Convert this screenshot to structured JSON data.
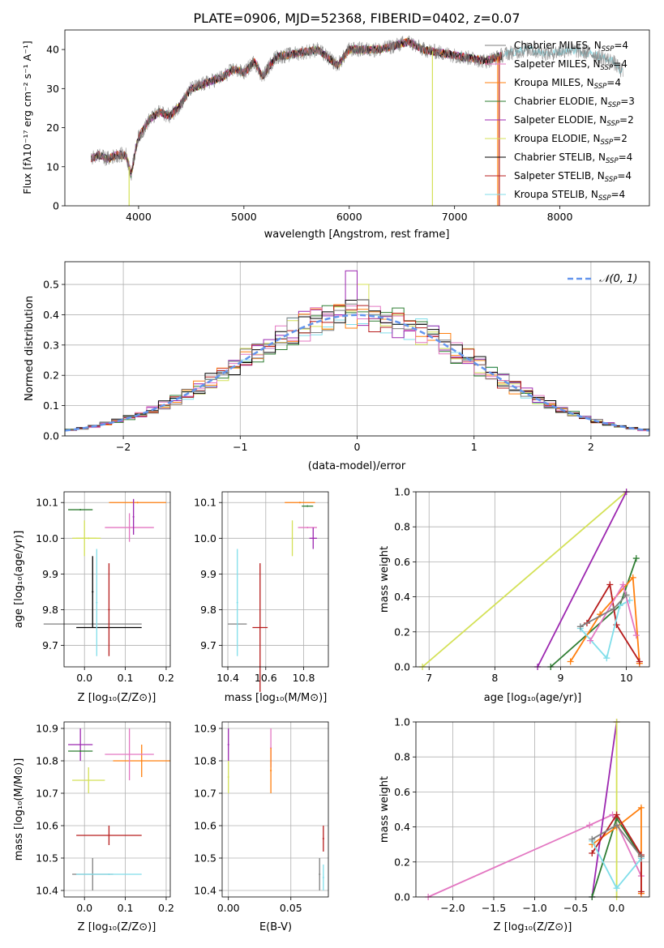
{
  "figure_title": "PLATE=0906, MJD=52368, FIBERID=0402, z=0.07",
  "legend": [
    {
      "label": "Chabrier MILES, N",
      "sub": "SSP",
      "tail": "=4",
      "color": "#7f7f7f"
    },
    {
      "label": "Salpeter MILES, N",
      "sub": "SSP",
      "tail": "=4",
      "color": "#e377c2"
    },
    {
      "label": "Kroupa MILES, N",
      "sub": "SSP",
      "tail": "=4",
      "color": "#ff7f0e"
    },
    {
      "label": "Chabrier ELODIE, N",
      "sub": "SSP",
      "tail": "=3",
      "color": "#2e7d32"
    },
    {
      "label": "Salpeter ELODIE, N",
      "sub": "SSP",
      "tail": "=2",
      "color": "#9c27b0"
    },
    {
      "label": "Kroupa ELODIE, N",
      "sub": "SSP",
      "tail": "=2",
      "color": "#d4e157"
    },
    {
      "label": "Chabrier STELIB, N",
      "sub": "SSP",
      "tail": "=4",
      "color": "#000000"
    },
    {
      "label": "Salpeter STELIB, N",
      "sub": "SSP",
      "tail": "=4",
      "color": "#b71c1c"
    },
    {
      "label": "Kroupa STELIB, N",
      "sub": "SSP",
      "tail": "=4",
      "color": "#80deea"
    }
  ],
  "hist_legend": "𝒩(0, 1)",
  "chart_data": [
    {
      "type": "line",
      "id": "spectrum",
      "xlabel": "wavelength [Angstrom, rest frame]",
      "ylabel": "Flux [fλ10⁻¹⁷ erg cm⁻² s⁻¹ A⁻¹]",
      "xlim": [
        3300,
        8850
      ],
      "ylim": [
        0,
        45
      ],
      "xticks": [
        4000,
        5000,
        6000,
        7000,
        8000
      ],
      "yticks": [
        0,
        10,
        20,
        30,
        40
      ],
      "grid": false,
      "continuum": [
        [
          3550,
          12
        ],
        [
          3620,
          13
        ],
        [
          3700,
          12
        ],
        [
          3800,
          13
        ],
        [
          3880,
          13
        ],
        [
          3930,
          8
        ],
        [
          3990,
          17
        ],
        [
          4100,
          22
        ],
        [
          4200,
          24
        ],
        [
          4300,
          23
        ],
        [
          4400,
          26
        ],
        [
          4500,
          30
        ],
        [
          4600,
          31
        ],
        [
          4700,
          32
        ],
        [
          4800,
          33
        ],
        [
          4900,
          35
        ],
        [
          5000,
          34
        ],
        [
          5100,
          37
        ],
        [
          5175,
          33
        ],
        [
          5300,
          38
        ],
        [
          5500,
          39
        ],
        [
          5700,
          40
        ],
        [
          5890,
          36
        ],
        [
          6000,
          40
        ],
        [
          6300,
          40
        ],
        [
          6563,
          42
        ],
        [
          6700,
          40
        ],
        [
          6900,
          39
        ],
        [
          7100,
          38
        ],
        [
          7300,
          37
        ],
        [
          7500,
          39
        ],
        [
          7700,
          40
        ],
        [
          7900,
          39
        ],
        [
          8100,
          40
        ],
        [
          8300,
          39
        ],
        [
          8400,
          38
        ],
        [
          8500,
          37
        ],
        [
          8600,
          34
        ]
      ]
    },
    {
      "type": "bar",
      "id": "residual-histogram",
      "xlabel": "(data-model)/error",
      "ylabel": "Normed distribution",
      "xlim": [
        -2.5,
        2.5
      ],
      "ylim": [
        0,
        0.575
      ],
      "xticks": [
        -2,
        -1,
        0,
        1,
        2
      ],
      "yticks": [
        0.0,
        0.1,
        0.2,
        0.3,
        0.4,
        0.5
      ],
      "grid": true,
      "bins": {
        "start": -2.5,
        "width": 0.1,
        "count": 50
      },
      "reference_curve": "normal(0,1)"
    },
    {
      "type": "scatter",
      "id": "age-vs-metallicity",
      "xlabel": "Z [log₁₀(Z/Z⊙)]",
      "ylabel": "age  [log₁₀(age/yr)]",
      "xlim": [
        -0.05,
        0.21
      ],
      "ylim": [
        9.64,
        10.13
      ],
      "xticks": [
        0.0,
        0.1,
        0.2
      ],
      "yticks": [
        9.7,
        9.8,
        9.9,
        10.0,
        10.1
      ],
      "grid": true,
      "points": [
        {
          "s": 0,
          "x": 0.02,
          "y": 9.76,
          "xe": 0.12,
          "ye": 0.0
        },
        {
          "s": 6,
          "x": 0.06,
          "y": 9.75,
          "xe": 0.08,
          "ye": 0.0
        },
        {
          "s": 6,
          "x": 0.02,
          "y": 9.85,
          "xe": 0.0,
          "ye": 0.1
        },
        {
          "s": 8,
          "x": 0.03,
          "y": 9.82,
          "xe": 0.0,
          "ye": 0.15
        },
        {
          "s": 7,
          "x": 0.06,
          "y": 9.8,
          "xe": 0.0,
          "ye": 0.13
        },
        {
          "s": 3,
          "x": -0.01,
          "y": 10.08,
          "xe": 0.03,
          "ye": 0.0
        },
        {
          "s": 5,
          "x": 0.0,
          "y": 10.0,
          "xe": 0.03,
          "ye": 0.05
        },
        {
          "s": 5,
          "x": 0.01,
          "y": 10.0,
          "xe": 0.03,
          "ye": 0.0
        },
        {
          "s": 2,
          "x": 0.13,
          "y": 10.1,
          "xe": 0.07,
          "ye": 0.0
        },
        {
          "s": 1,
          "x": 0.11,
          "y": 10.03,
          "xe": 0.06,
          "ye": 0.04
        },
        {
          "s": 4,
          "x": 0.12,
          "y": 10.06,
          "xe": 0.0,
          "ye": 0.05
        }
      ]
    },
    {
      "type": "scatter",
      "id": "age-vs-mass",
      "xlabel": "mass [log₁₀(M/M⊙)]",
      "ylabel": "",
      "xlim": [
        10.37,
        10.93
      ],
      "ylim": [
        9.64,
        10.13
      ],
      "xticks": [
        10.4,
        10.6,
        10.8
      ],
      "yticks": [
        9.7,
        9.8,
        9.9,
        10.0,
        10.1
      ],
      "grid": true,
      "points": [
        {
          "s": 0,
          "x": 10.45,
          "y": 9.76,
          "xe": 0.05,
          "ye": 0.0
        },
        {
          "s": 8,
          "x": 10.45,
          "y": 9.82,
          "xe": 0.0,
          "ye": 0.15
        },
        {
          "s": 7,
          "x": 10.57,
          "y": 9.75,
          "xe": 0.04,
          "ye": 0.18
        },
        {
          "s": 5,
          "x": 10.74,
          "y": 10.0,
          "xe": 0.0,
          "ye": 0.05
        },
        {
          "s": 2,
          "x": 10.78,
          "y": 10.1,
          "xe": 0.08,
          "ye": 0.0
        },
        {
          "s": 3,
          "x": 10.82,
          "y": 10.09,
          "xe": 0.03,
          "ye": 0.0
        },
        {
          "s": 1,
          "x": 10.82,
          "y": 10.03,
          "xe": 0.05,
          "ye": 0.0
        },
        {
          "s": 4,
          "x": 10.85,
          "y": 10.0,
          "xe": 0.02,
          "ye": 0.03
        }
      ]
    },
    {
      "type": "line",
      "id": "mass-weight-vs-age",
      "xlabel": "age  [log₁₀(age/yr)]",
      "ylabel": "mass weight",
      "xlim": [
        6.8,
        10.35
      ],
      "ylim": [
        0,
        1.0
      ],
      "xticks": [
        7,
        8,
        9,
        10
      ],
      "yticks": [
        0.0,
        0.2,
        0.4,
        0.6,
        0.8,
        1.0
      ],
      "grid": true,
      "series": [
        {
          "s": 5,
          "x": [
            6.9,
            10.0
          ],
          "y": [
            0.0,
            1.0
          ]
        },
        {
          "s": 4,
          "x": [
            8.65,
            10.0
          ],
          "y": [
            0.0,
            1.0
          ]
        },
        {
          "s": 3,
          "x": [
            8.85,
            9.9,
            10.15
          ],
          "y": [
            0.0,
            0.35,
            0.62
          ]
        },
        {
          "s": 2,
          "x": [
            9.15,
            9.6,
            10.1,
            10.2
          ],
          "y": [
            0.03,
            0.3,
            0.51,
            0.02
          ]
        },
        {
          "s": 7,
          "x": [
            9.4,
            9.75,
            9.85,
            10.2
          ],
          "y": [
            0.25,
            0.47,
            0.24,
            0.03
          ]
        },
        {
          "s": 8,
          "x": [
            9.3,
            9.7,
            9.9,
            10.05
          ],
          "y": [
            0.22,
            0.05,
            0.35,
            0.38
          ]
        },
        {
          "s": 1,
          "x": [
            9.45,
            9.95,
            10.15
          ],
          "y": [
            0.15,
            0.47,
            0.18
          ]
        },
        {
          "s": 0,
          "x": [
            9.3,
            9.8,
            10.0
          ],
          "y": [
            0.23,
            0.33,
            0.41
          ]
        }
      ]
    },
    {
      "type": "scatter",
      "id": "mass-vs-metallicity",
      "xlabel": "Z [log₁₀(Z/Z⊙)]",
      "ylabel": "mass [log₁₀(M/M⊙)]",
      "xlim": [
        -0.05,
        0.21
      ],
      "ylim": [
        10.38,
        10.92
      ],
      "xticks": [
        0.0,
        0.1,
        0.2
      ],
      "yticks": [
        10.4,
        10.5,
        10.6,
        10.7,
        10.8,
        10.9
      ],
      "grid": true,
      "points": [
        {
          "s": 4,
          "x": -0.01,
          "y": 10.85,
          "xe": 0.03,
          "ye": 0.05
        },
        {
          "s": 3,
          "x": -0.01,
          "y": 10.83,
          "xe": 0.03,
          "ye": 0.0
        },
        {
          "s": 5,
          "x": 0.01,
          "y": 10.74,
          "xe": 0.04,
          "ye": 0.04
        },
        {
          "s": 2,
          "x": 0.14,
          "y": 10.8,
          "xe": 0.07,
          "ye": 0.05
        },
        {
          "s": 1,
          "x": 0.11,
          "y": 10.82,
          "xe": 0.06,
          "ye": 0.08
        },
        {
          "s": 7,
          "x": 0.06,
          "y": 10.57,
          "xe": 0.08,
          "ye": 0.03
        },
        {
          "s": 0,
          "x": 0.02,
          "y": 10.45,
          "xe": 0.05,
          "ye": 0.05
        },
        {
          "s": 8,
          "x": 0.06,
          "y": 10.45,
          "xe": 0.08,
          "ye": 0.0
        }
      ]
    },
    {
      "type": "scatter",
      "id": "mass-vs-extinction",
      "xlabel": "E(B-V)",
      "ylabel": "",
      "xlim": [
        -0.005,
        0.08
      ],
      "ylim": [
        10.38,
        10.92
      ],
      "xticks": [
        0.0,
        0.05
      ],
      "xtick_labels": [
        "0.00",
        "0.05"
      ],
      "yticks": [
        10.4,
        10.5,
        10.6,
        10.7,
        10.8,
        10.9
      ],
      "grid": true,
      "points": [
        {
          "s": 4,
          "x": 0.0,
          "y": 10.85,
          "xe": 0.0,
          "ye": 0.05
        },
        {
          "s": 5,
          "x": 0.0,
          "y": 10.75,
          "xe": 0.0,
          "ye": 0.05
        },
        {
          "s": 1,
          "x": 0.034,
          "y": 10.84,
          "xe": 0.0,
          "ye": 0.06
        },
        {
          "s": 2,
          "x": 0.034,
          "y": 10.77,
          "xe": 0.0,
          "ye": 0.07
        },
        {
          "s": 7,
          "x": 0.076,
          "y": 10.56,
          "xe": 0.0,
          "ye": 0.04
        },
        {
          "s": 0,
          "x": 0.073,
          "y": 10.45,
          "xe": 0.0,
          "ye": 0.05
        },
        {
          "s": 8,
          "x": 0.076,
          "y": 10.44,
          "xe": 0.0,
          "ye": 0.04
        }
      ]
    },
    {
      "type": "line",
      "id": "mass-weight-vs-metallicity",
      "xlabel": "Z [log₁₀(Z/Z⊙)]",
      "ylabel": "mass weight",
      "xlim": [
        -2.45,
        0.4
      ],
      "ylim": [
        0,
        1.0
      ],
      "xticks": [
        -2.0,
        -1.5,
        -1.0,
        -0.5,
        0.0
      ],
      "xtick_labels": [
        "−2.0",
        "−1.5",
        "−1.0",
        "−0.5",
        "0.0"
      ],
      "yticks": [
        0.0,
        0.2,
        0.4,
        0.6,
        0.8,
        1.0
      ],
      "grid": true,
      "series": [
        {
          "s": 1,
          "x": [
            -2.3,
            -0.33,
            -0.05,
            0.3
          ],
          "y": [
            0.0,
            0.41,
            0.47,
            0.12
          ]
        },
        {
          "s": 4,
          "x": [
            -0.3,
            0.0
          ],
          "y": [
            0.0,
            1.0
          ]
        },
        {
          "s": 5,
          "x": [
            0.0,
            0.0
          ],
          "y": [
            0.0,
            1.0
          ]
        },
        {
          "s": 3,
          "x": [
            -0.3,
            0.0,
            0.3
          ],
          "y": [
            0.0,
            0.45,
            0.23
          ]
        },
        {
          "s": 2,
          "x": [
            -0.3,
            0.0,
            0.3,
            0.3
          ],
          "y": [
            0.3,
            0.4,
            0.51,
            0.02
          ]
        },
        {
          "s": 7,
          "x": [
            -0.3,
            0.0,
            0.3,
            0.3
          ],
          "y": [
            0.25,
            0.47,
            0.24,
            0.03
          ]
        },
        {
          "s": 8,
          "x": [
            -0.3,
            0.0,
            0.3
          ],
          "y": [
            0.32,
            0.05,
            0.22
          ]
        },
        {
          "s": 0,
          "x": [
            -0.3,
            0.0,
            0.3
          ],
          "y": [
            0.33,
            0.41,
            0.23
          ]
        }
      ]
    }
  ]
}
